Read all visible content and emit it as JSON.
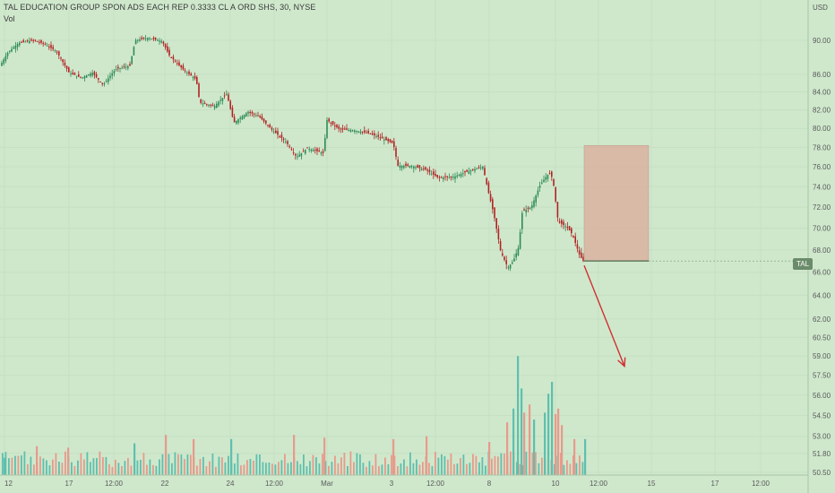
{
  "header": {
    "title": "TAL EDUCATION GROUP SPON ADS EACH REP 0.3333 CL A ORD SHS, 30, NYSE",
    "volume_label": "Vol",
    "currency": "USD",
    "symbol_badge": "TAL"
  },
  "colors": {
    "background": "#cfe8cc",
    "up": "#2e8b57",
    "down": "#b22222",
    "volume_up": "#5fbfae",
    "volume_down": "#e89a8c",
    "box_fill": "#d9b2a0",
    "arrow": "#d03030"
  },
  "chart_data": {
    "type": "candlestick",
    "title": "TAL EDUCATION GROUP SPON ADS EACH REP 0.3333 CL A ORD SHS, 30, NYSE",
    "y_axis": {
      "label": "USD",
      "ticks": [
        90.0,
        86.0,
        84.0,
        82.0,
        80.0,
        78.0,
        76.0,
        74.0,
        72.0,
        70.0,
        68.0,
        66.0,
        64.0,
        62.0,
        60.5,
        59.0,
        57.5,
        56.0,
        54.5,
        53.0,
        51.8,
        50.5
      ],
      "scale": "log",
      "ylim": [
        50.5,
        93.0
      ]
    },
    "x_axis": {
      "ticks": [
        "12",
        "17",
        "12:00",
        "22",
        "24",
        "12:00",
        "Mar",
        "3",
        "12:00",
        "8",
        "10",
        "12:00",
        "15",
        "17",
        "12:00"
      ]
    },
    "price_path": [
      [
        0,
        86.8
      ],
      [
        10,
        88.6
      ],
      [
        22,
        89.7
      ],
      [
        38,
        90.0
      ],
      [
        50,
        89.6
      ],
      [
        64,
        88.7
      ],
      [
        78,
        86.2
      ],
      [
        92,
        85.6
      ],
      [
        104,
        86.2
      ],
      [
        116,
        84.8
      ],
      [
        130,
        86.6
      ],
      [
        146,
        87.0
      ],
      [
        152,
        90.0
      ],
      [
        166,
        90.3
      ],
      [
        182,
        89.9
      ],
      [
        190,
        88.2
      ],
      [
        205,
        86.6
      ],
      [
        220,
        85.4
      ],
      [
        224,
        82.8
      ],
      [
        240,
        82.4
      ],
      [
        254,
        83.8
      ],
      [
        262,
        80.6
      ],
      [
        278,
        81.8
      ],
      [
        290,
        81.3
      ],
      [
        305,
        79.8
      ],
      [
        320,
        78.6
      ],
      [
        332,
        77.0
      ],
      [
        344,
        77.9
      ],
      [
        362,
        77.4
      ],
      [
        366,
        80.9
      ],
      [
        380,
        79.9
      ],
      [
        396,
        79.8
      ],
      [
        412,
        79.5
      ],
      [
        426,
        79.0
      ],
      [
        440,
        78.4
      ],
      [
        445,
        76.1
      ],
      [
        460,
        76.1
      ],
      [
        476,
        75.7
      ],
      [
        490,
        74.9
      ],
      [
        508,
        75.0
      ],
      [
        522,
        75.5
      ],
      [
        540,
        76.0
      ],
      [
        546,
        73.5
      ],
      [
        552,
        71.4
      ],
      [
        560,
        67.8
      ],
      [
        568,
        66.4
      ],
      [
        574,
        67.0
      ],
      [
        580,
        68.3
      ],
      [
        584,
        71.6
      ],
      [
        594,
        72.0
      ],
      [
        604,
        74.2
      ],
      [
        614,
        75.4
      ],
      [
        618,
        74.8
      ],
      [
        624,
        70.6
      ],
      [
        634,
        70.1
      ],
      [
        640,
        69.4
      ],
      [
        648,
        67.5
      ],
      [
        652,
        67.0
      ]
    ],
    "volume_bars": [
      [
        4,
        51.5,
        "up"
      ],
      [
        40,
        52.3,
        "down"
      ],
      [
        75,
        52.2,
        "down"
      ],
      [
        149,
        52.5,
        "up"
      ],
      [
        184,
        53.1,
        "down"
      ],
      [
        215,
        52.8,
        "down"
      ],
      [
        257,
        52.8,
        "up"
      ],
      [
        327,
        53.1,
        "down"
      ],
      [
        361,
        52.9,
        "down"
      ],
      [
        438,
        52.8,
        "down"
      ],
      [
        475,
        53.0,
        "down"
      ],
      [
        545,
        52.6,
        "down"
      ],
      [
        565,
        54.0,
        "down"
      ],
      [
        572,
        55.0,
        "up"
      ],
      [
        577,
        59.0,
        "up"
      ],
      [
        581,
        56.5,
        "up"
      ],
      [
        584,
        54.7,
        "down"
      ],
      [
        590,
        55.3,
        "down"
      ],
      [
        595,
        54.2,
        "up"
      ],
      [
        607,
        54.7,
        "up"
      ],
      [
        611,
        56.1,
        "up"
      ],
      [
        615,
        57.0,
        "up"
      ],
      [
        619,
        54.6,
        "down"
      ],
      [
        622,
        55.0,
        "down"
      ],
      [
        626,
        53.8,
        "down"
      ],
      [
        640,
        52.8,
        "down"
      ],
      [
        652,
        52.8,
        "up"
      ]
    ],
    "last_price": 67.0,
    "annotations": [
      {
        "type": "rectangle",
        "x0": 652,
        "x1": 724,
        "y_top": 78.2,
        "y_bottom": 67.0
      },
      {
        "type": "arrow",
        "x0": 652,
        "y0": 66.6,
        "x1": 697,
        "y1": 58.2
      }
    ]
  }
}
